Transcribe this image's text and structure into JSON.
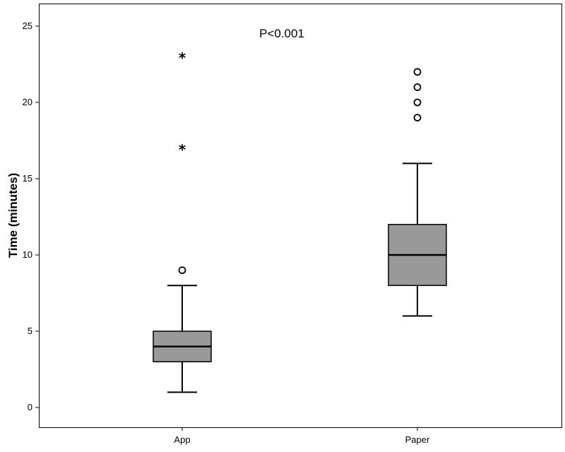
{
  "chart_data": {
    "type": "boxplot",
    "ylabel": "Time (minutes)",
    "xlabel": "",
    "ylim": [
      -1.3,
      26.2
    ],
    "yticks": [
      0,
      5,
      10,
      15,
      20,
      25
    ],
    "grid": false,
    "annotation": "P<0.001",
    "categories": [
      "App",
      "Paper"
    ],
    "boxes": [
      {
        "category": "App",
        "whisker_low": 1,
        "q1": 3,
        "median": 4,
        "q3": 5,
        "whisker_high": 8,
        "outliers": [
          9
        ],
        "extremes": [
          17,
          23
        ]
      },
      {
        "category": "Paper",
        "whisker_low": 6,
        "q1": 8,
        "median": 10,
        "q3": 12,
        "whisker_high": 16,
        "outliers": [
          19,
          20,
          21,
          22
        ],
        "extremes": []
      }
    ],
    "colors": {
      "box_fill": "#999999",
      "line": "#000000",
      "background": "#ffffff"
    }
  }
}
